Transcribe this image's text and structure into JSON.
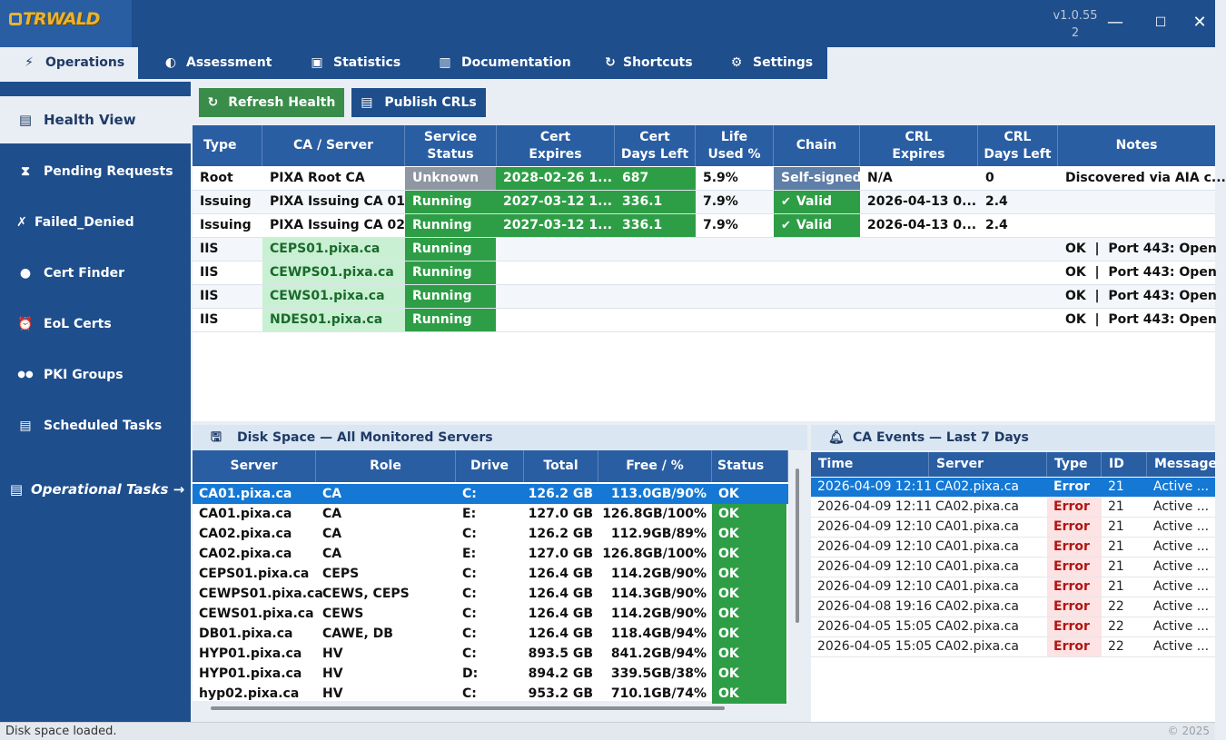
{
  "app": {
    "logo_text": "TRWALD",
    "version": "v1.0.55",
    "build": "2",
    "window": {
      "minimize": "—",
      "maximize": "☐",
      "close": "✕"
    }
  },
  "menu": {
    "tabs": [
      {
        "label": "Operations",
        "icon": "bolt-icon",
        "glyph": "⚡"
      },
      {
        "label": "Assessment",
        "icon": "shield-icon",
        "glyph": "◐"
      },
      {
        "label": "Statistics",
        "icon": "chart-icon",
        "glyph": "▣"
      },
      {
        "label": "Documentation",
        "icon": "book-icon",
        "glyph": "▥"
      },
      {
        "label": "Shortcuts",
        "icon": "refresh-icon",
        "glyph": "↻"
      },
      {
        "label": "Settings",
        "icon": "gear-icon",
        "glyph": "⚙"
      }
    ]
  },
  "sidebar": {
    "items": [
      {
        "label": "Health View",
        "glyph": "▤"
      },
      {
        "label": "Pending Requests",
        "glyph": "⧗"
      },
      {
        "label": "Failed_Denied",
        "glyph": "✗"
      },
      {
        "label": "Cert Finder",
        "glyph": "●"
      },
      {
        "label": "EoL Certs",
        "glyph": "⏰"
      },
      {
        "label": "PKI Groups",
        "glyph": "●●"
      },
      {
        "label": "Scheduled Tasks",
        "glyph": "▤"
      }
    ],
    "operational": {
      "label": "Operational Tasks →",
      "glyph": "▤"
    }
  },
  "toolbar": {
    "refresh_label": "Refresh Health",
    "refresh_glyph": "↻",
    "publish_label": "Publish CRLs",
    "publish_glyph": "▤"
  },
  "health": {
    "columns": {
      "type": "Type",
      "ca": "CA / Server",
      "status": "Service\nStatus",
      "expires": "Cert\nExpires",
      "days": "Cert\nDays Left",
      "life": "Life\nUsed %",
      "chain": "Chain",
      "crl_exp": "CRL\nExpires",
      "crl_days": "CRL\nDays Left",
      "notes": "Notes"
    },
    "ca_rows": [
      {
        "type": "Root",
        "ca": "PIXA Root CA",
        "status": "Unknown",
        "expires": "2028-02-26 1...",
        "days": "687",
        "life": "5.9%",
        "chain": "Self-signed",
        "crl_exp": "N/A",
        "crl_days": "0",
        "notes": "Discovered via AIA c..."
      },
      {
        "type": "Issuing",
        "ca": "PIXA Issuing CA 01",
        "status": "Running",
        "expires": "2027-03-12 1...",
        "days": "336.1",
        "life": "7.9%",
        "chain": "Valid",
        "crl_exp": "2026-04-13 0...",
        "crl_days": "2.4",
        "notes": ""
      },
      {
        "type": "Issuing",
        "ca": "PIXA Issuing CA 02",
        "status": "Running",
        "expires": "2027-03-12 1...",
        "days": "336.1",
        "life": "7.9%",
        "chain": "Valid",
        "crl_exp": "2026-04-13 0...",
        "crl_days": "2.4",
        "notes": ""
      }
    ],
    "iis_rows": [
      {
        "type": "IIS",
        "server": "CEPS01.pixa.ca",
        "status": "Running",
        "notes": "OK  |  Port 443: Open"
      },
      {
        "type": "IIS",
        "server": "CEWPS01.pixa.ca",
        "status": "Running",
        "notes": "OK  |  Port 443: Open"
      },
      {
        "type": "IIS",
        "server": "CEWS01.pixa.ca",
        "status": "Running",
        "notes": "OK  |  Port 443: Open"
      },
      {
        "type": "IIS",
        "server": "NDES01.pixa.ca",
        "status": "Running",
        "notes": "OK  |  Port 443: Open"
      }
    ]
  },
  "disk": {
    "title": "Disk Space — All Monitored Servers",
    "columns": [
      "Server",
      "Role",
      "Drive",
      "Total",
      "Free / %",
      "Status"
    ],
    "rows": [
      [
        "CA01.pixa.ca",
        "CA",
        "C:",
        "126.2 GB",
        "113.0GB/90%",
        "OK"
      ],
      [
        "CA01.pixa.ca",
        "CA",
        "E:",
        "127.0 GB",
        "126.8GB/100%",
        "OK"
      ],
      [
        "CA02.pixa.ca",
        "CA",
        "C:",
        "126.2 GB",
        "112.9GB/89%",
        "OK"
      ],
      [
        "CA02.pixa.ca",
        "CA",
        "E:",
        "127.0 GB",
        "126.8GB/100%",
        "OK"
      ],
      [
        "CEPS01.pixa.ca",
        "CEPS",
        "C:",
        "126.4 GB",
        "114.2GB/90%",
        "OK"
      ],
      [
        "CEWPS01.pixa.ca",
        "CEWS, CEPS",
        "C:",
        "126.4 GB",
        "114.3GB/90%",
        "OK"
      ],
      [
        "CEWS01.pixa.ca",
        "CEWS",
        "C:",
        "126.4 GB",
        "114.2GB/90%",
        "OK"
      ],
      [
        "DB01.pixa.ca",
        "CAWE, DB",
        "C:",
        "126.4 GB",
        "118.4GB/94%",
        "OK"
      ],
      [
        "HYP01.pixa.ca",
        "HV",
        "C:",
        "893.5 GB",
        "841.2GB/94%",
        "OK"
      ],
      [
        "HYP01.pixa.ca",
        "HV",
        "D:",
        "894.2 GB",
        "339.5GB/38%",
        "OK"
      ],
      [
        "hyp02.pixa.ca",
        "HV",
        "C:",
        "953.2 GB",
        "710.1GB/74%",
        "OK"
      ]
    ]
  },
  "events": {
    "title": "CA Events — Last 7 Days",
    "columns": [
      "Time",
      "Server",
      "Type",
      "ID",
      "Message"
    ],
    "rows": [
      [
        "2026-04-09 12:11",
        "CA02.pixa.ca",
        "Error",
        "21",
        "Active ..."
      ],
      [
        "2026-04-09 12:11",
        "CA02.pixa.ca",
        "Error",
        "21",
        "Active ..."
      ],
      [
        "2026-04-09 12:10",
        "CA01.pixa.ca",
        "Error",
        "21",
        "Active ..."
      ],
      [
        "2026-04-09 12:10",
        "CA01.pixa.ca",
        "Error",
        "21",
        "Active ..."
      ],
      [
        "2026-04-09 12:10",
        "CA01.pixa.ca",
        "Error",
        "21",
        "Active ..."
      ],
      [
        "2026-04-09 12:10",
        "CA01.pixa.ca",
        "Error",
        "21",
        "Active ..."
      ],
      [
        "2026-04-08 19:16",
        "CA02.pixa.ca",
        "Error",
        "22",
        "Active ..."
      ],
      [
        "2026-04-05 15:05",
        "CA02.pixa.ca",
        "Error",
        "22",
        "Active ..."
      ],
      [
        "2026-04-05 15:05",
        "CA02.pixa.ca",
        "Error",
        "22",
        "Active ..."
      ]
    ]
  },
  "status": {
    "text": "Disk space loaded.",
    "copyright": "© 2025"
  }
}
